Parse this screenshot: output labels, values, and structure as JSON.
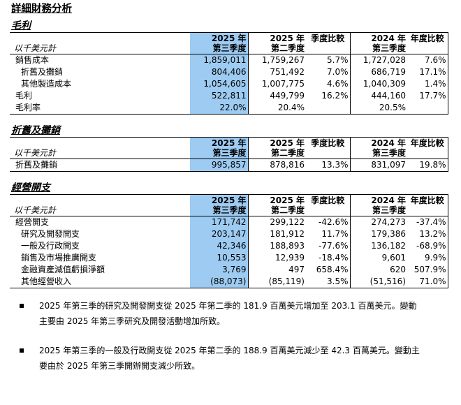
{
  "title": "詳細財務分析",
  "sections": [
    {
      "title": "毛利",
      "unit": "以千美元計",
      "headers": {
        "c1": [
          "2025 年",
          "第三季度"
        ],
        "c2": [
          "2025 年",
          "第二季度"
        ],
        "c3": [
          "季度比較",
          ""
        ],
        "c4": [
          "2024 年",
          "第三季度"
        ],
        "c5": [
          "年度比較",
          ""
        ]
      },
      "rows": [
        {
          "label": "銷售成本",
          "indent": false,
          "values": [
            "1,859,011",
            "1,759,267",
            "5.7%",
            "1,727,028",
            "7.6%"
          ]
        },
        {
          "label": "折舊及攤銷",
          "indent": true,
          "values": [
            "804,406",
            "751,492",
            "7.0%",
            "686,719",
            "17.1%"
          ]
        },
        {
          "label": "其他製造成本",
          "indent": true,
          "values": [
            "1,054,605",
            "1,007,775",
            "4.6%",
            "1,040,309",
            "1.4%"
          ]
        },
        {
          "label": "毛利",
          "indent": false,
          "values": [
            "522,811",
            "449,799",
            "16.2%",
            "444,160",
            "17.7%"
          ]
        },
        {
          "label": "毛利率",
          "indent": false,
          "values": [
            "22.0%",
            "20.4%",
            "",
            "20.5%",
            ""
          ]
        }
      ]
    },
    {
      "title": "折舊及攤銷",
      "unit": "以千美元計",
      "headers": {
        "c1": [
          "2025 年",
          "第三季度"
        ],
        "c2": [
          "2025 年",
          "第二季度"
        ],
        "c3": [
          "季度比較",
          ""
        ],
        "c4": [
          "2024 年",
          "第三季度"
        ],
        "c5": [
          "年度比較",
          ""
        ]
      },
      "rows": [
        {
          "label": "折舊及攤銷",
          "indent": false,
          "values": [
            "995,857",
            "878,816",
            "13.3%",
            "831,097",
            "19.8%"
          ]
        }
      ]
    },
    {
      "title": "經營開支",
      "unit": "以千美元計",
      "headers": {
        "c1": [
          "2025 年",
          "第三季度"
        ],
        "c2": [
          "2025 年",
          "第二季度"
        ],
        "c3": [
          "季度比較",
          ""
        ],
        "c4": [
          "2024 年",
          "第三季度"
        ],
        "c5": [
          "年度比較",
          ""
        ]
      },
      "rows": [
        {
          "label": "經營開支",
          "indent": false,
          "values": [
            "171,742",
            "299,122",
            "-42.6%",
            "274,273",
            "-37.4%"
          ]
        },
        {
          "label": "研究及開發開支",
          "indent": true,
          "values": [
            "203,147",
            "181,912",
            "11.7%",
            "179,386",
            "13.2%"
          ]
        },
        {
          "label": "一般及行政開支",
          "indent": true,
          "values": [
            "42,346",
            "188,893",
            "-77.6%",
            "136,182",
            "-68.9%"
          ]
        },
        {
          "label": "銷售及市場推廣開支",
          "indent": true,
          "values": [
            "10,553",
            "12,939",
            "-18.4%",
            "9,601",
            "9.9%"
          ]
        },
        {
          "label": "金融資產減值虧損淨額",
          "indent": true,
          "values": [
            "3,769",
            "497",
            "658.4%",
            "620",
            "507.9%"
          ]
        },
        {
          "label": "其他經營收入",
          "indent": true,
          "values": [
            "(88,073)",
            "(85,119)",
            "3.5%",
            "(51,516)",
            "71.0%"
          ]
        }
      ]
    }
  ],
  "notes": [
    {
      "line1": "2025 年第三季的研究及開發開支從 2025 年第二季的 181.9 百萬美元增加至 203.1 百萬美元。變動",
      "line2": "主要由 2025 年第三季研究及開發活動增加所致。"
    },
    {
      "line1": "2025 年第三季的一般及行政開支從 2025 年第二季的 188.9 百萬美元減少至 42.3 百萬美元。變動主",
      "line2": "要由於 2025 年第三季開辦開支減少所致。"
    }
  ],
  "colors": {
    "highlight": "#9dcbf2"
  }
}
